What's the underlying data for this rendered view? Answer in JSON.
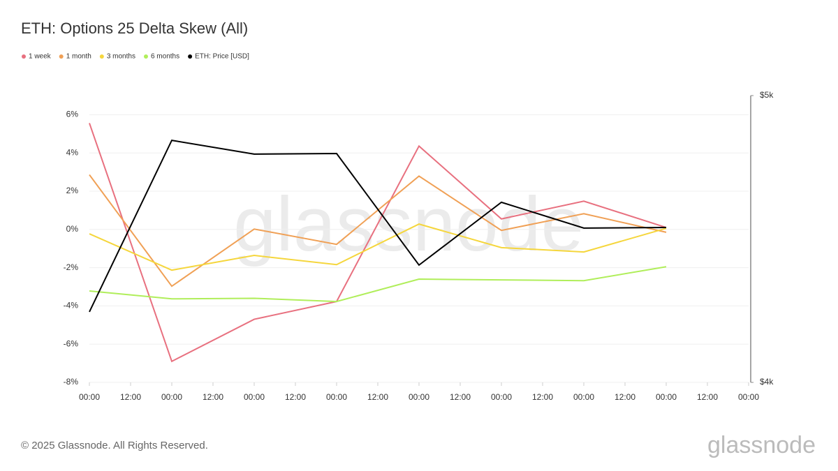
{
  "chart_data": {
    "type": "line",
    "title": "ETH: Options 25 Delta Skew (All)",
    "watermark": "glassnode",
    "footer": "© 2025 Glassnode. All Rights Reserved.",
    "logo": "glassnode",
    "x": [
      0,
      24,
      48,
      72,
      96,
      120,
      144,
      168
    ],
    "xlim": [
      0,
      192
    ],
    "xticks": [
      {
        "value": 0,
        "label": "00:00"
      },
      {
        "value": 12,
        "label": "12:00"
      },
      {
        "value": 24,
        "label": "00:00"
      },
      {
        "value": 36,
        "label": "12:00"
      },
      {
        "value": 48,
        "label": "00:00"
      },
      {
        "value": 60,
        "label": "12:00"
      },
      {
        "value": 72,
        "label": "00:00"
      },
      {
        "value": 84,
        "label": "12:00"
      },
      {
        "value": 96,
        "label": "00:00"
      },
      {
        "value": 108,
        "label": "12:00"
      },
      {
        "value": 120,
        "label": "00:00"
      },
      {
        "value": 132,
        "label": "12:00"
      },
      {
        "value": 144,
        "label": "00:00"
      },
      {
        "value": 156,
        "label": "12:00"
      },
      {
        "value": 168,
        "label": "00:00"
      },
      {
        "value": 180,
        "label": "12:00"
      },
      {
        "value": 192,
        "label": "00:00"
      }
    ],
    "ylim": [
      -8,
      7
    ],
    "yticks": [
      {
        "value": -8,
        "label": "-8%"
      },
      {
        "value": -6,
        "label": "-6%"
      },
      {
        "value": -4,
        "label": "-4%"
      },
      {
        "value": -2,
        "label": "-2%"
      },
      {
        "value": 0,
        "label": "0%"
      },
      {
        "value": 2,
        "label": "2%"
      },
      {
        "value": 4,
        "label": "4%"
      },
      {
        "value": 6,
        "label": "6%"
      }
    ],
    "y2lim": [
      4000,
      5000
    ],
    "y2ticks": [
      {
        "value": 4000,
        "label": "$4k"
      },
      {
        "value": 5000,
        "label": "$5k"
      }
    ],
    "grid": true,
    "legend": "top-left",
    "series": [
      {
        "name": "1 week",
        "color": "#e8707f",
        "values": [
          5.56,
          -6.9,
          -4.7,
          -3.77,
          4.36,
          0.55,
          1.48,
          0.1
        ]
      },
      {
        "name": "1 month",
        "color": "#f0a055",
        "values": [
          2.86,
          -2.97,
          0.02,
          -0.78,
          2.79,
          -0.05,
          0.82,
          -0.15
        ]
      },
      {
        "name": "3 months",
        "color": "#f5d63c",
        "values": [
          -0.23,
          -2.13,
          -1.36,
          -1.84,
          0.28,
          -0.95,
          -1.18,
          0.06
        ]
      },
      {
        "name": "6 months",
        "color": "#b0ee5a",
        "values": [
          -3.22,
          -3.63,
          -3.6,
          -3.77,
          -2.6,
          -2.64,
          -2.68,
          -1.95
        ]
      },
      {
        "name": "ETH: Price [USD]",
        "color": "#000000",
        "axis": "y2",
        "values": [
          4246,
          4844,
          4796,
          4798,
          4409,
          4628,
          4538,
          4540
        ]
      }
    ]
  }
}
